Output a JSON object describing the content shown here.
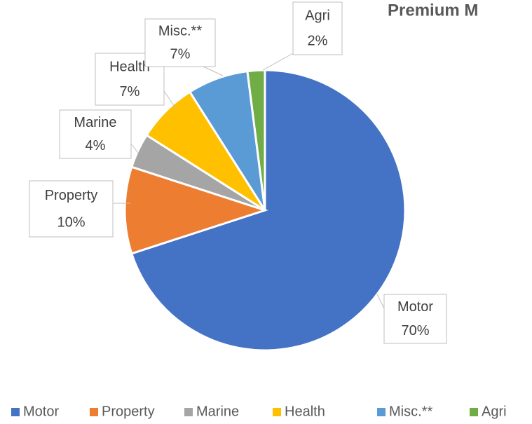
{
  "chart_data": {
    "type": "pie",
    "title": "Premium M",
    "categories": [
      "Motor",
      "Property",
      "Marine",
      "Health",
      "Misc.**",
      "Agri"
    ],
    "values": [
      70,
      10,
      4,
      7,
      7,
      2
    ],
    "value_labels": [
      "70%",
      "10%",
      "4%",
      "7%",
      "7%",
      "2%"
    ],
    "colors": [
      "#4472c4",
      "#ed7d31",
      "#a5a5a5",
      "#ffc000",
      "#5b9bd5",
      "#70ad47"
    ],
    "legend": "bottom"
  }
}
